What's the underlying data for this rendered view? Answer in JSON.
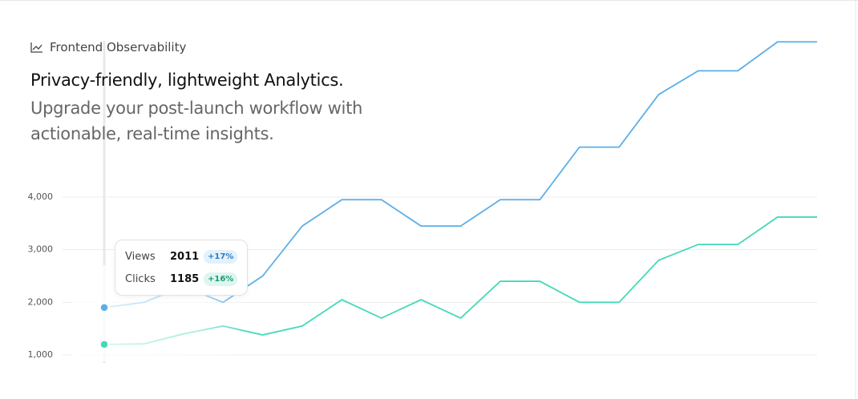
{
  "header": {
    "eyebrow": "Frontend Observability",
    "title": "Privacy-friendly, lightweight Analytics.",
    "subtitle": "Upgrade your post-launch workflow with actionable, real-time insights."
  },
  "tooltip": {
    "rows": [
      {
        "value": 2011,
        "change": "+17%"
      },
      {
        "value": 1185,
        "change": "+16%"
      }
    ]
  },
  "chart_data": {
    "type": "line",
    "series": [
      {
        "name": "Views",
        "color": "#5aaee8",
        "values": [
          1900,
          2000,
          2300,
          2000,
          2500,
          3450,
          3950,
          3950,
          3450,
          3450,
          3950,
          3950,
          4950,
          4950,
          5950,
          6400,
          6400,
          6950,
          6950
        ]
      },
      {
        "name": "Clicks",
        "color": "#45d9b8",
        "values": [
          1200,
          1210,
          1400,
          1550,
          1380,
          1550,
          2050,
          1700,
          2050,
          1700,
          2400,
          2400,
          2000,
          2000,
          2800,
          3100,
          3100,
          3620,
          3620
        ]
      }
    ],
    "ylim": [
      1000,
      7000
    ],
    "yticks": [
      {
        "value": 1000,
        "label": "1,000"
      },
      {
        "value": 2000,
        "label": "2,000"
      },
      {
        "value": 3000,
        "label": "3,000"
      },
      {
        "value": 4000,
        "label": "4,000"
      }
    ],
    "grid": true
  }
}
